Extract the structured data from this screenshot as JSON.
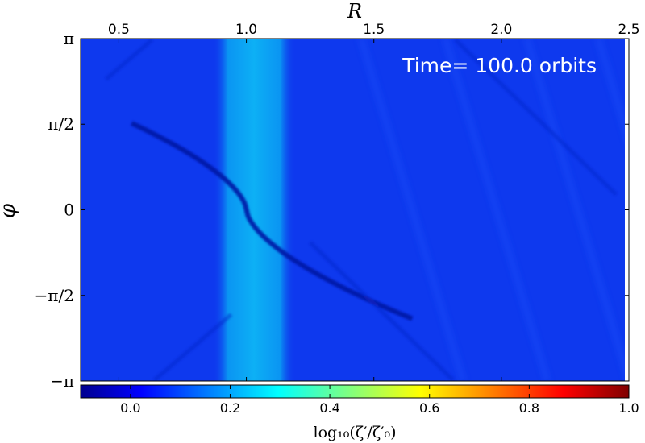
{
  "chart_data": {
    "type": "heatmap",
    "title": "",
    "annotation": "Time= 100.0 orbits",
    "xlabel": "R",
    "ylabel": "φ",
    "x_axis_position": "top",
    "xlim": [
      0.35,
      2.5
    ],
    "ylim": [
      -3.14159,
      3.14159
    ],
    "x_ticks": [
      {
        "value": 0.5,
        "label": "0.5"
      },
      {
        "value": 1.0,
        "label": "1.0"
      },
      {
        "value": 1.5,
        "label": "1.5"
      },
      {
        "value": 2.0,
        "label": "2.0"
      },
      {
        "value": 2.5,
        "label": "2.5"
      }
    ],
    "y_ticks": [
      {
        "value": 3.14159,
        "label": "π"
      },
      {
        "value": 1.5708,
        "label": "π/2"
      },
      {
        "value": 0,
        "label": "0"
      },
      {
        "value": -1.5708,
        "label": "−π/2"
      },
      {
        "value": -3.14159,
        "label": "−π"
      }
    ],
    "colorbar": {
      "label": "log₁₀(ζ′/ζ′₀)",
      "range": [
        -0.1,
        1.0
      ],
      "colormap": "jet",
      "orientation": "horizontal",
      "ticks": [
        {
          "value": 0.0,
          "label": "0.0"
        },
        {
          "value": 0.2,
          "label": "0.2"
        },
        {
          "value": 0.4,
          "label": "0.4"
        },
        {
          "value": 0.6,
          "label": "0.6"
        },
        {
          "value": 0.8,
          "label": "0.8"
        },
        {
          "value": 1.0,
          "label": "1.0"
        }
      ]
    },
    "field_features": {
      "background_value": 0.03,
      "ring": {
        "r_center": 1.03,
        "r_halfwidth": 0.1,
        "value": 0.2
      },
      "planet": {
        "r": 1.0,
        "phi": 0.0
      },
      "spiral_wake_value": -0.08
    },
    "colors": {
      "background_blue": "#0e39ee",
      "ring_cyan": "#0a9ff3",
      "wake_dark": "#0718a5"
    }
  }
}
